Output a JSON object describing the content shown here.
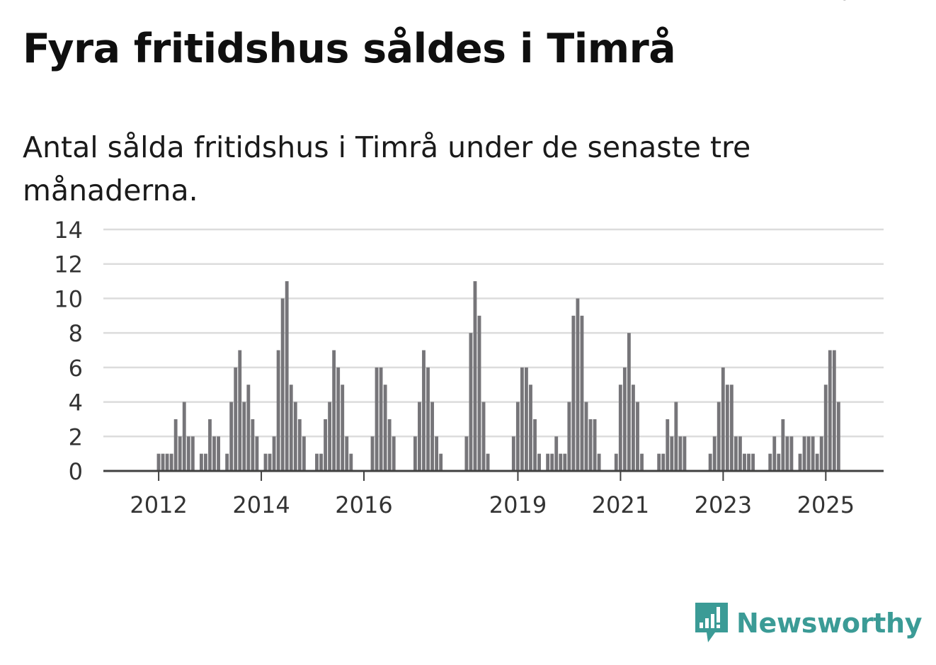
{
  "title": "Fyra fritidshus såldes i Timrå",
  "subtitle": "Antal sålda fritidshus i Timrå under de senaste tre månaderna.",
  "brand": {
    "name": "Newsworthy",
    "icon": "newsworthy-logo-icon"
  },
  "colors": {
    "bar": "#767579",
    "highlight": "#2a9d98",
    "grid": "#dcdcdc",
    "axis": "#404040",
    "tick_text": "#333333",
    "brand": "#3b9b96"
  },
  "chart_data": {
    "type": "bar",
    "title": "Fyra fritidshus såldes i Timrå",
    "xlabel": "",
    "ylabel": "",
    "ylim": [
      0,
      14
    ],
    "yticks": [
      0,
      2,
      4,
      6,
      8,
      10,
      12,
      14
    ],
    "grid": true,
    "legend": "none",
    "start": [
      2011,
      1
    ],
    "xtick_labels": [
      {
        "label": "2012",
        "year": 2012
      },
      {
        "label": "2014",
        "year": 2014
      },
      {
        "label": "2016",
        "year": 2016
      },
      {
        "label": "2019",
        "year": 2019
      },
      {
        "label": "2021",
        "year": 2021
      },
      {
        "label": "2023",
        "year": 2023
      },
      {
        "label": "2025",
        "year": 2025
      }
    ],
    "values": [
      0,
      0,
      0,
      0,
      0,
      0,
      0,
      0,
      0,
      0,
      0,
      0,
      1,
      1,
      1,
      1,
      3,
      2,
      4,
      2,
      2,
      0,
      1,
      1,
      3,
      2,
      2,
      0,
      1,
      4,
      6,
      7,
      4,
      5,
      3,
      2,
      0,
      1,
      1,
      2,
      7,
      10,
      11,
      5,
      4,
      3,
      2,
      0,
      0,
      1,
      1,
      3,
      4,
      7,
      6,
      5,
      2,
      1,
      0,
      0,
      0,
      0,
      2,
      6,
      6,
      5,
      3,
      2,
      0,
      0,
      0,
      0,
      2,
      4,
      7,
      6,
      4,
      2,
      1,
      0,
      0,
      0,
      0,
      0,
      2,
      8,
      11,
      9,
      4,
      1,
      0,
      0,
      0,
      0,
      0,
      2,
      4,
      6,
      6,
      5,
      3,
      1,
      0,
      1,
      1,
      2,
      1,
      1,
      4,
      9,
      10,
      9,
      4,
      3,
      3,
      1,
      0,
      0,
      0,
      1,
      5,
      6,
      8,
      5,
      4,
      1,
      0,
      0,
      0,
      1,
      1,
      3,
      2,
      4,
      2,
      2,
      0,
      0,
      0,
      0,
      0,
      1,
      2,
      4,
      6,
      5,
      5,
      2,
      2,
      1,
      1,
      1,
      0,
      0,
      0,
      1,
      2,
      1,
      3,
      2,
      2,
      0,
      1,
      2,
      2,
      2,
      1,
      2,
      5,
      7,
      7,
      4
    ],
    "highlight": {
      "index": 172,
      "label": "4"
    }
  }
}
